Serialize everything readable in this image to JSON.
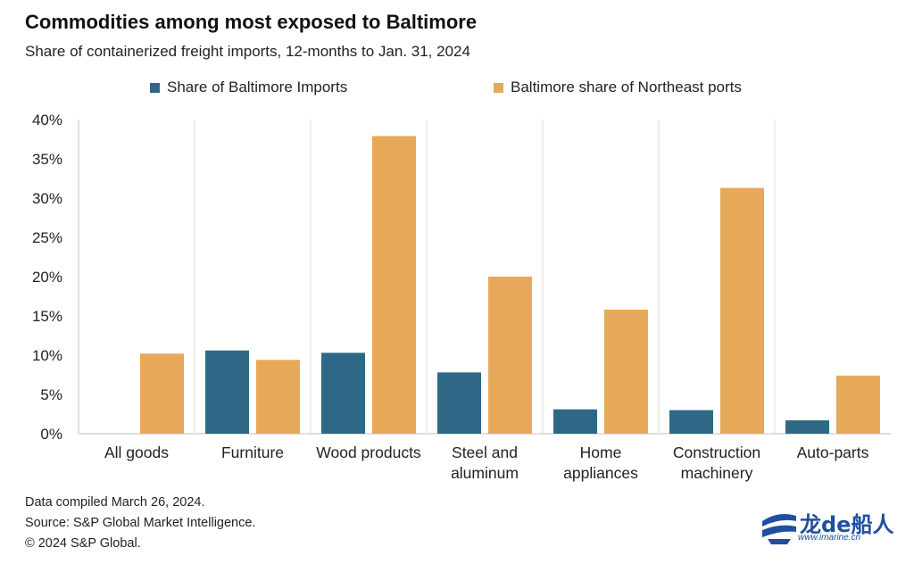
{
  "header": {
    "title": "Commodities among most exposed to Baltimore",
    "subtitle": "Share of containerized  freight imports, 12-months to Jan. 31, 2024"
  },
  "legend": {
    "items": [
      {
        "label": "Share of Baltimore Imports",
        "color": "#2e6886"
      },
      {
        "label": "Baltimore share of Northeast ports",
        "color": "#e6a95a"
      }
    ]
  },
  "chart_data": {
    "type": "bar",
    "categories": [
      [
        "All goods"
      ],
      [
        "Furniture"
      ],
      [
        "Wood products"
      ],
      [
        "Steel and",
        "aluminum"
      ],
      [
        "Home",
        "appliances"
      ],
      [
        "Construction",
        "machinery"
      ],
      [
        "Auto-parts"
      ]
    ],
    "series": [
      {
        "name": "Share of Baltimore Imports",
        "color": "#2e6886",
        "values": [
          null,
          10.6,
          10.3,
          7.8,
          3.1,
          3.0,
          1.7
        ]
      },
      {
        "name": "Baltimore share of Northeast ports",
        "color": "#e6a95a",
        "values": [
          10.2,
          9.4,
          37.9,
          20.0,
          15.8,
          31.3,
          7.4
        ]
      }
    ],
    "ylim": [
      0,
      40
    ],
    "yticks": [
      0,
      5,
      10,
      15,
      20,
      25,
      30,
      35,
      40
    ],
    "ytick_format": "{v}%",
    "grid": "vertical category separators",
    "legend_position": "top"
  },
  "footer": {
    "lines": [
      "Data compiled March 26, 2024.",
      "Source: S&P Global Market Intelligence.",
      "© 2024 S&P Global."
    ]
  },
  "watermark": {
    "brand": "龙de船人",
    "url": "www.imarine.cn"
  }
}
